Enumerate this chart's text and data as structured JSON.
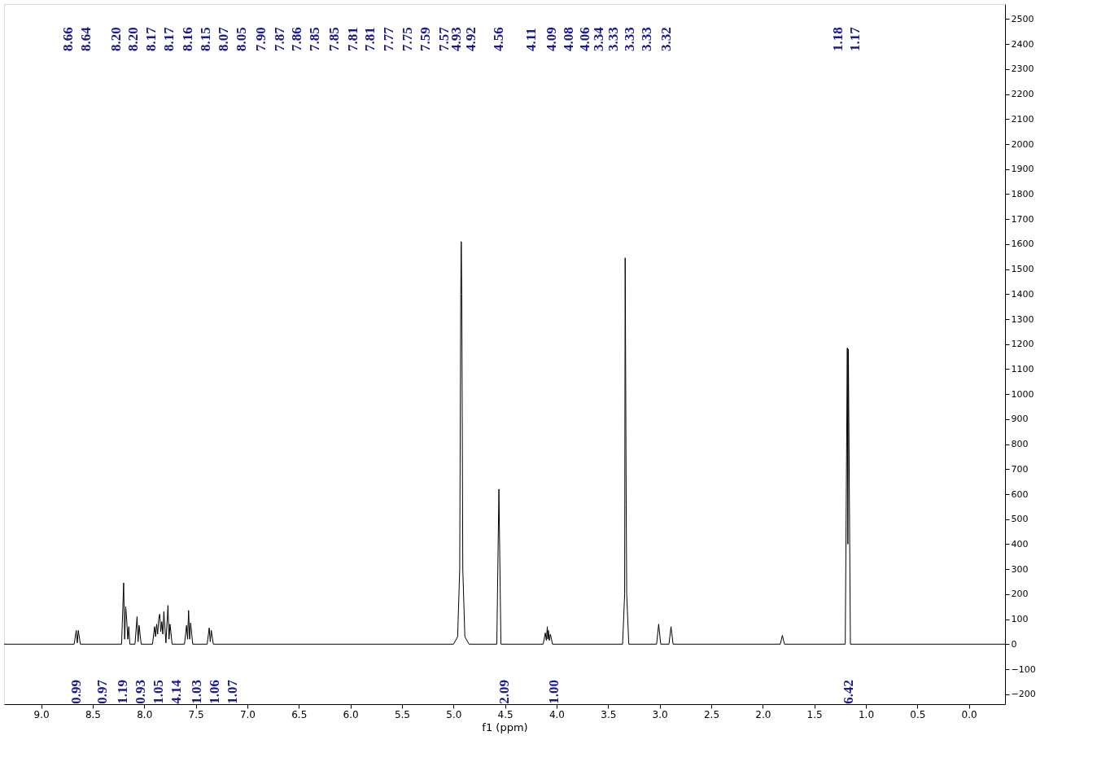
{
  "chart_data": {
    "type": "line",
    "xlabel": "f1 (ppm)",
    "xlim": [
      9.36,
      -0.35
    ],
    "ylim": [
      -240,
      2560
    ],
    "xticks": [
      {
        "value": 9,
        "label": "9.0"
      },
      {
        "value": 8.5,
        "label": "8.5"
      },
      {
        "value": 8,
        "label": "8.0"
      },
      {
        "value": 7.5,
        "label": "7.5"
      },
      {
        "value": 7,
        "label": "7.0"
      },
      {
        "value": 6.5,
        "label": "6.5"
      },
      {
        "value": 6,
        "label": "6.0"
      },
      {
        "value": 5.5,
        "label": "5.5"
      },
      {
        "value": 5,
        "label": "5.0"
      },
      {
        "value": 4.5,
        "label": "4.5"
      },
      {
        "value": 4,
        "label": "4.0"
      },
      {
        "value": 3.5,
        "label": "3.5"
      },
      {
        "value": 3,
        "label": "3.0"
      },
      {
        "value": 2.5,
        "label": "2.5"
      },
      {
        "value": 2,
        "label": "2.0"
      },
      {
        "value": 1.5,
        "label": "1.5"
      },
      {
        "value": 1,
        "label": "1.0"
      },
      {
        "value": 0.5,
        "label": "0.5"
      },
      {
        "value": 0,
        "label": "0.0"
      }
    ],
    "yticks": [
      -200,
      -100,
      0,
      100,
      200,
      300,
      400,
      500,
      600,
      700,
      800,
      900,
      1000,
      1100,
      1200,
      1300,
      1400,
      1500,
      1600,
      1700,
      1800,
      1900,
      2000,
      2100,
      2200,
      2300,
      2400,
      2500
    ],
    "grid": false,
    "marker": "none",
    "line_style": "solid",
    "x": [
      9.36,
      8.68,
      8.66,
      8.65,
      8.64,
      8.62,
      8.22,
      8.2,
      8.19,
      8.18,
      8.17,
      8.16,
      8.15,
      8.14,
      8.09,
      8.07,
      8.06,
      8.05,
      8.03,
      7.92,
      7.9,
      7.89,
      7.88,
      7.87,
      7.86,
      7.85,
      7.84,
      7.83,
      7.82,
      7.81,
      7.79,
      7.77,
      7.76,
      7.75,
      7.73,
      7.61,
      7.59,
      7.58,
      7.57,
      7.56,
      7.55,
      7.53,
      7.39,
      7.37,
      7.36,
      7.35,
      7.33,
      5.0,
      4.96,
      4.94,
      4.93,
      4.925,
      4.92,
      4.91,
      4.89,
      4.85,
      4.58,
      4.56,
      4.54,
      4.13,
      4.11,
      4.1,
      4.09,
      4.085,
      4.08,
      4.07,
      4.06,
      4.04,
      3.36,
      3.34,
      3.335,
      3.33,
      3.325,
      3.32,
      3.3,
      3.03,
      3.01,
      2.99,
      2.91,
      2.89,
      2.87,
      1.83,
      1.81,
      1.79,
      1.2,
      1.18,
      1.175,
      1.17,
      1.15,
      -0.35
    ],
    "series": [
      {
        "color": "#000000",
        "values": [
          0,
          0,
          55,
          5,
          55,
          0,
          0,
          245,
          20,
          150,
          95,
          20,
          70,
          0,
          0,
          110,
          10,
          75,
          0,
          0,
          70,
          30,
          80,
          40,
          100,
          120,
          50,
          90,
          40,
          130,
          5,
          155,
          20,
          80,
          0,
          0,
          75,
          20,
          135,
          20,
          85,
          0,
          0,
          65,
          10,
          55,
          0,
          0,
          30,
          300,
          1400,
          1610,
          1400,
          300,
          30,
          0,
          0,
          620,
          0,
          0,
          45,
          15,
          70,
          20,
          55,
          15,
          40,
          0,
          0,
          200,
          1545,
          1080,
          560,
          200,
          0,
          0,
          80,
          0,
          0,
          70,
          0,
          0,
          35,
          0,
          0,
          1185,
          400,
          1180,
          0,
          0
        ]
      }
    ],
    "annotations": [
      "8.66",
      "8.64",
      "8.20",
      "8.20",
      "8.17",
      "8.17",
      "8.16",
      "8.15",
      "8.07",
      "8.05",
      "7.90",
      "7.87",
      "7.86",
      "7.85",
      "7.85",
      "7.81",
      "7.81",
      "7.77",
      "7.75",
      "7.59",
      "7.57",
      "4.93",
      "4.92",
      "4.56",
      "4.11",
      "4.09",
      "4.08",
      "4.06",
      "3.34",
      "3.33",
      "3.33",
      "3.33",
      "3.32",
      "1.18",
      "1.17",
      "0.99",
      "0.97",
      "1.19",
      "0.93",
      "1.05",
      "4.14",
      "1.03",
      "1.06",
      "1.07",
      "2.09",
      "1.00",
      "6.42"
    ]
  }
}
